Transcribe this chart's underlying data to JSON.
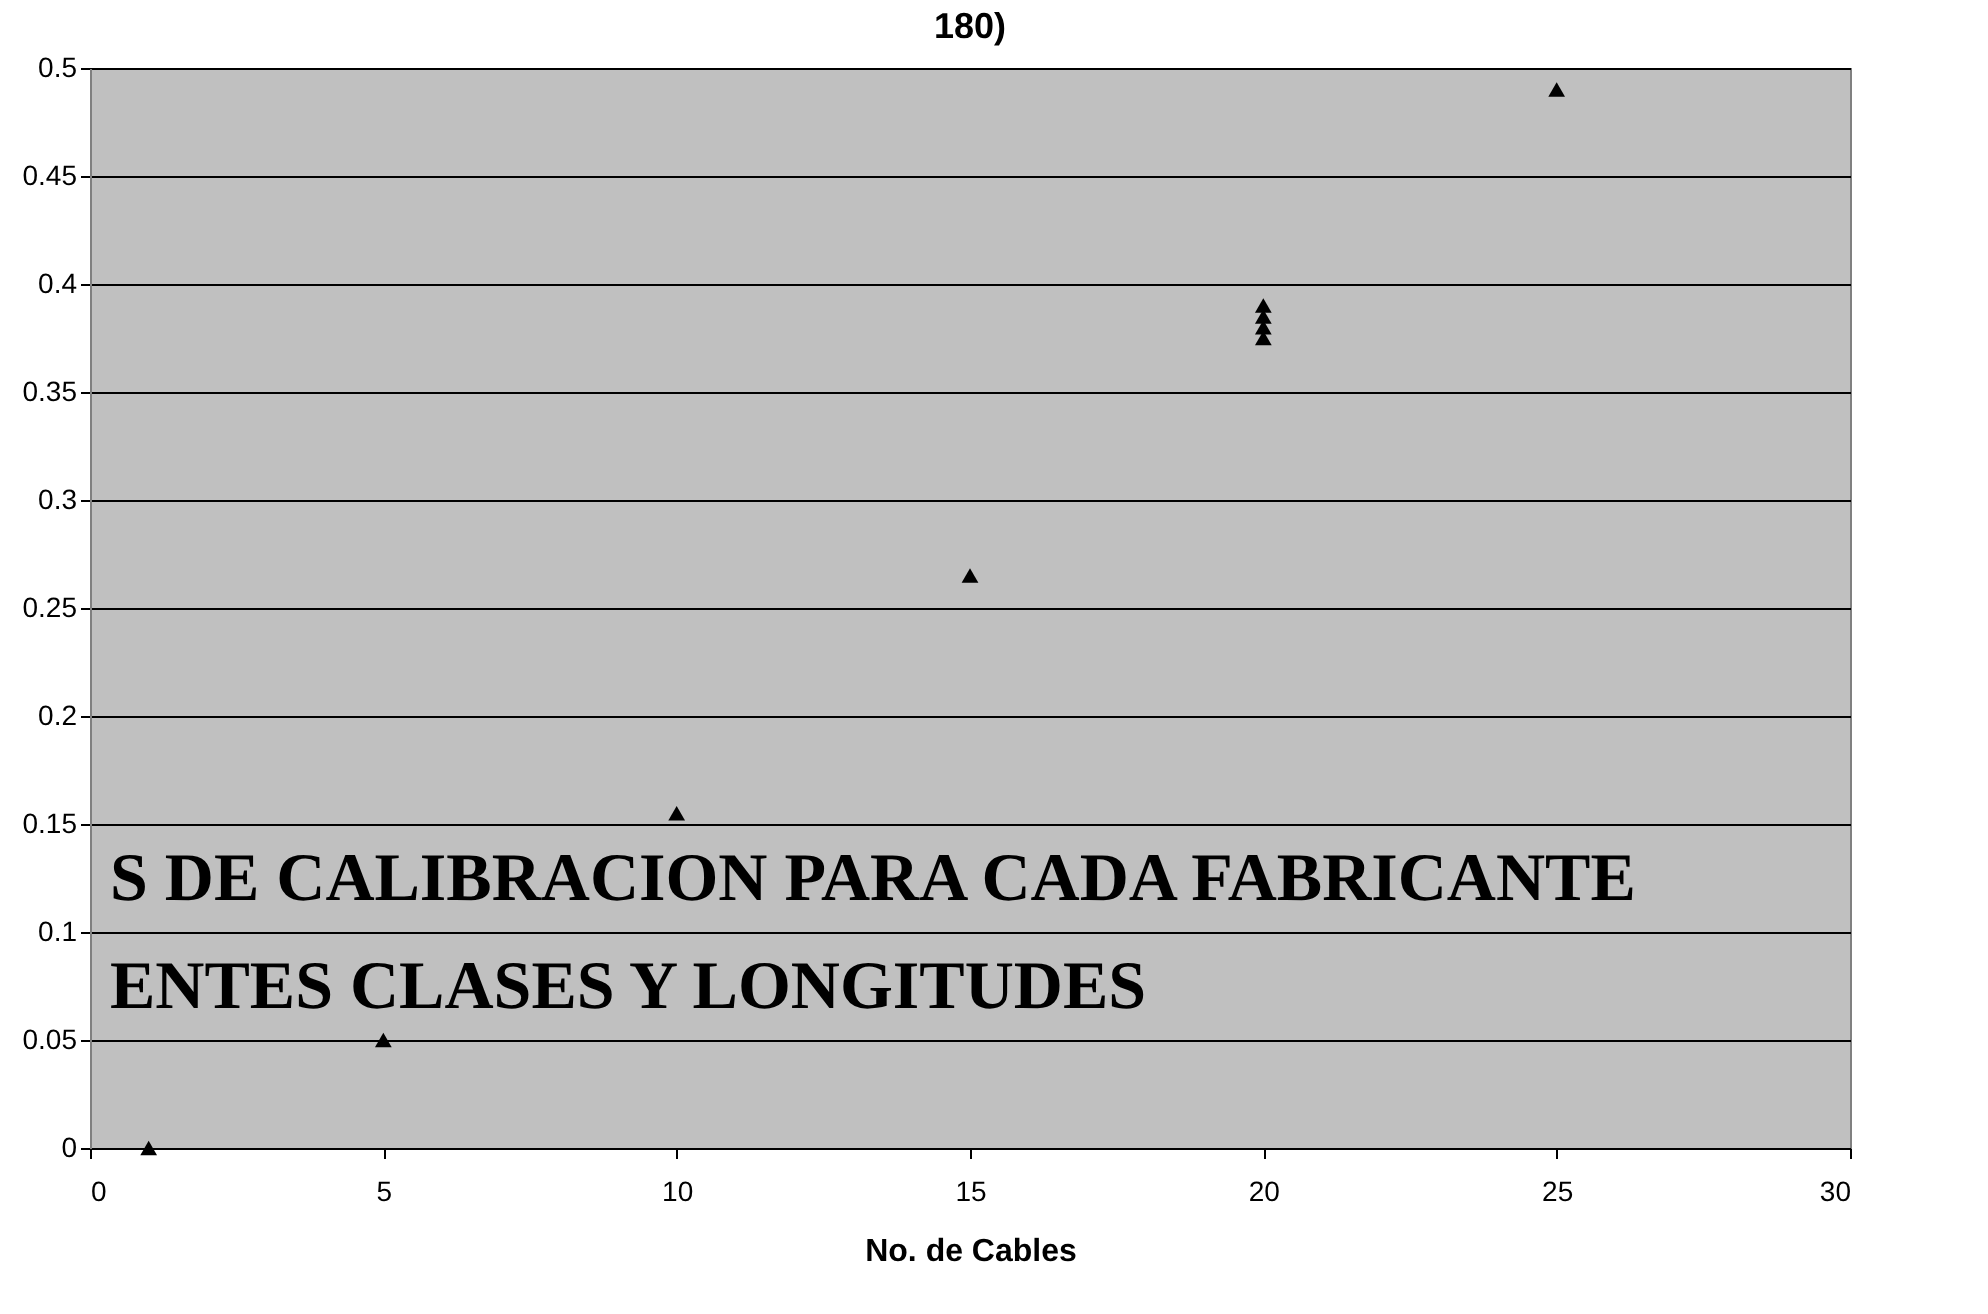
{
  "chart_data": {
    "type": "scatter",
    "title": "180)",
    "xlabel": "No. de Cables",
    "x": [
      1,
      5,
      10,
      15,
      20,
      20,
      20,
      20,
      25
    ],
    "series": [
      {
        "color": "#000000",
        "values": [
          0,
          0.05,
          0.155,
          0.265,
          0.375,
          0.38,
          0.385,
          0.39,
          0.49
        ]
      }
    ],
    "xlim": [
      0,
      30
    ],
    "xticks": [
      0,
      5,
      10,
      15,
      20,
      25,
      30
    ],
    "ylim": [
      0,
      0.5
    ],
    "yticks": [
      0,
      0.05,
      0.1,
      0.15,
      0.2,
      0.25,
      0.3,
      0.35,
      0.4,
      0.45,
      0.5
    ],
    "grid": "y",
    "marker": "triangle",
    "legend": false,
    "annotations": [
      "S DE CALIBRACION PARA CADA FABRICANTE",
      "ENTES CLASES Y LONGITUDES"
    ]
  }
}
